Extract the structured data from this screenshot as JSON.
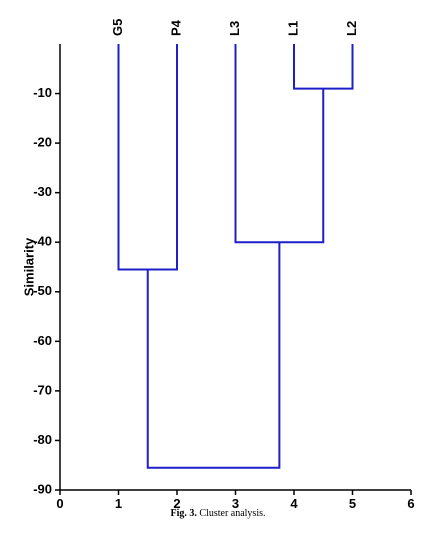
{
  "chart_data": {
    "type": "dendrogram",
    "y_label": "Similarity",
    "categories": [
      "G5",
      "P4",
      "L3",
      "L1",
      "L2"
    ],
    "x": [
      1,
      2,
      3,
      4,
      5
    ],
    "merges": [
      {
        "children": [
          3,
          4
        ],
        "height": -9
      },
      {
        "children": [
          0,
          1
        ],
        "height": -45.5
      },
      {
        "children": [
          2,
          5
        ],
        "height": -40
      },
      {
        "children": [
          6,
          7
        ],
        "height": -85.5
      }
    ],
    "color": "#1f1fc8",
    "xlim": [
      0,
      6
    ],
    "xticks": [
      0,
      1,
      2,
      3,
      4,
      5,
      6
    ],
    "ylim": [
      -90,
      0
    ],
    "yticks": [
      -10,
      -20,
      -30,
      -40,
      -50,
      -60,
      -70,
      -80,
      -90
    ],
    "caption_label": "Fig. 3.",
    "caption_text": "Cluster analysis."
  }
}
